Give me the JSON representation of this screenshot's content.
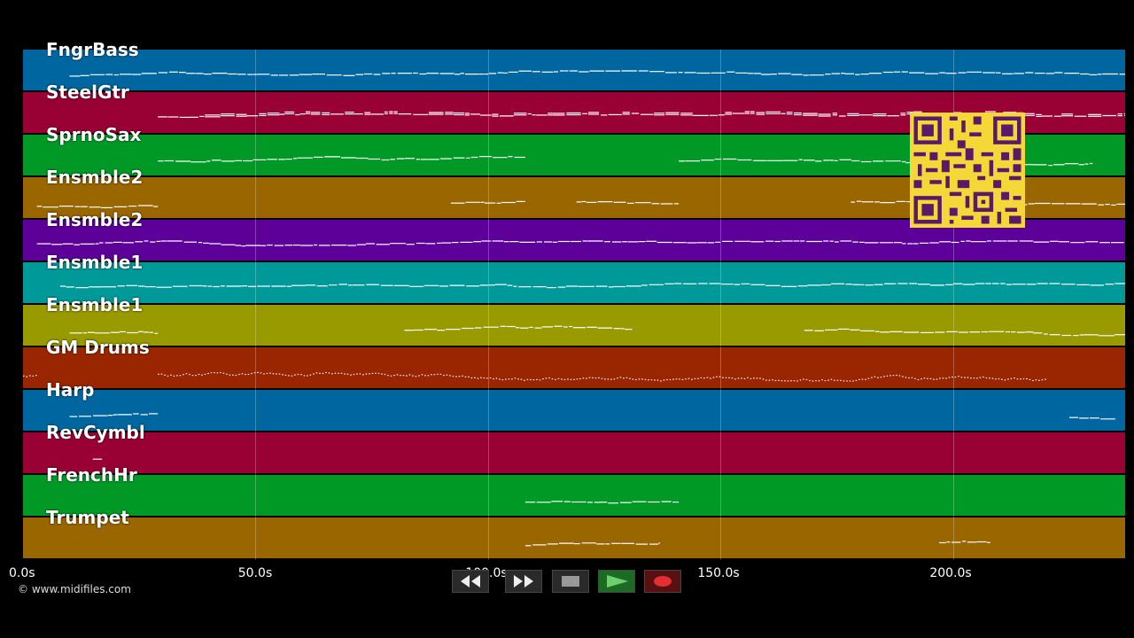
{
  "colors": {
    "background": "#000000",
    "note": "#ffffff",
    "track_palette": [
      "#005f99",
      "#990033",
      "#009926",
      "#996600",
      "#5c0099",
      "#009999",
      "#999900",
      "#992600",
      "#005f99",
      "#990033",
      "#009926",
      "#996600"
    ]
  },
  "tracks": [
    {
      "name": "FngrBass",
      "color": "#0066a0"
    },
    {
      "name": "SteelGtr",
      "color": "#990033"
    },
    {
      "name": "SprnoSax",
      "color": "#009926"
    },
    {
      "name": "Ensmble2",
      "color": "#996600"
    },
    {
      "name": "Ensmble2",
      "color": "#5c0099"
    },
    {
      "name": "Ensmble1",
      "color": "#009999"
    },
    {
      "name": "Ensmble1",
      "color": "#999900"
    },
    {
      "name": "GM Drums",
      "color": "#992600"
    },
    {
      "name": "Harp",
      "color": "#0066a0"
    },
    {
      "name": "RevCymbl",
      "color": "#990033"
    },
    {
      "name": "FrenchHr",
      "color": "#009926"
    },
    {
      "name": "Trumpet",
      "color": "#996600"
    }
  ],
  "timeline": {
    "ticks": [
      "0.0s",
      "50.0s",
      "100.0s",
      "150.0s",
      "200.0s"
    ],
    "tick_seconds": [
      0,
      50,
      100,
      150,
      200
    ],
    "duration_seconds": 237
  },
  "copyright": "© www.midifiles.com",
  "controls": {
    "rewind": "rewind-icon",
    "fast_forward": "fast-forward-icon",
    "stop": "stop-icon",
    "play": "play-icon",
    "record": "record-icon"
  },
  "qr_code": "qr-code-icon"
}
